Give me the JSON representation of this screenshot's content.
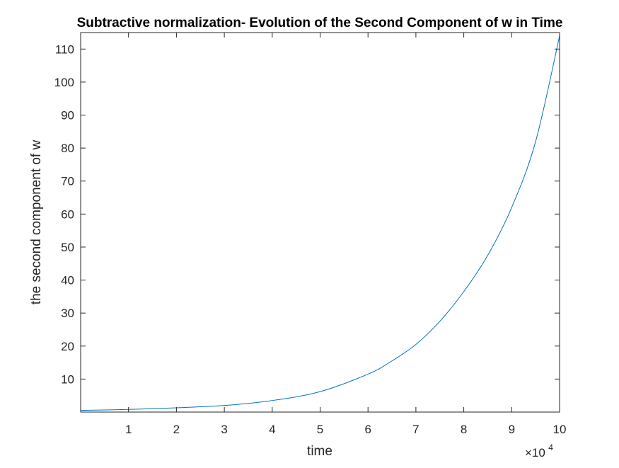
{
  "chart_data": {
    "type": "line",
    "title": "Subtractive normalization- Evolution of the Second Component of w in Time",
    "xlabel": "time",
    "ylabel": "the second component of w",
    "x_multiplier_label": {
      "base": "×10",
      "exponent": "4"
    },
    "x_scale_factor": 10000,
    "xlim": [
      0,
      100000
    ],
    "ylim": [
      0,
      115
    ],
    "xticks": [
      10000,
      20000,
      30000,
      40000,
      50000,
      60000,
      70000,
      80000,
      90000,
      100000
    ],
    "xtick_labels": [
      "1",
      "2",
      "3",
      "4",
      "5",
      "6",
      "7",
      "8",
      "9",
      "10"
    ],
    "yticks": [
      10,
      20,
      30,
      40,
      50,
      60,
      70,
      80,
      90,
      100,
      110
    ],
    "ytick_labels": [
      "10",
      "20",
      "30",
      "40",
      "50",
      "60",
      "70",
      "80",
      "90",
      "100",
      "110"
    ],
    "grid": false,
    "box": true,
    "series": [
      {
        "color": "#0072BD",
        "x": [
          0,
          10000,
          20000,
          30000,
          40000,
          50000,
          60000,
          65000,
          70000,
          75000,
          80000,
          85000,
          90000,
          95000,
          100000
        ],
        "y": [
          0.5,
          0.8,
          1.3,
          2.0,
          3.5,
          6.2,
          11.5,
          15.5,
          20.5,
          27.5,
          36.5,
          47.5,
          62.0,
          82.0,
          114.0
        ]
      }
    ]
  }
}
